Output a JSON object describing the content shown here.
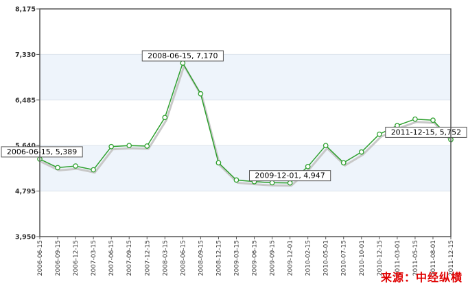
{
  "source_label": "来源：中经纵横",
  "colors": {
    "line": "#2ea02e",
    "shadow": "#c8c8c8",
    "band": "#eef4fb",
    "frame": "#555555",
    "source": "#e00000"
  },
  "chart_data": {
    "type": "line",
    "title": "",
    "xlabel": "",
    "ylabel": "",
    "ylim": [
      3950,
      8175
    ],
    "yticks": [
      "8,175",
      "7,330",
      "6,485",
      "5,640",
      "4,795",
      "3,950"
    ],
    "ytick_values": [
      8175,
      7330,
      6485,
      5640,
      4795,
      3950
    ],
    "categories": [
      "2006-06-15",
      "2006-09-15",
      "2006-12-15",
      "2007-03-15",
      "2007-06-15",
      "2007-09-15",
      "2007-12-15",
      "2008-03-15",
      "2008-06-15",
      "2008-09-15",
      "2008-12-15",
      "2009-03-15",
      "2009-06-15",
      "2009-09-15",
      "2009-12-01",
      "2010-02-15",
      "2010-05-01",
      "2010-07-15",
      "2010-10-01",
      "2010-12-15",
      "2011-03-01",
      "2011-05-15",
      "2011-08-01",
      "2011-12-15"
    ],
    "series": [
      {
        "values": [
          5389,
          5230,
          5260,
          5190,
          5620,
          5640,
          5630,
          6160,
          7170,
          6600,
          5320,
          5000,
          4970,
          4950,
          4947,
          5250,
          5640,
          5320,
          5520,
          5850,
          6010,
          6130,
          6110,
          5752
        ]
      }
    ],
    "annotations": [
      {
        "index": 0,
        "text": "2006-06-15, 5,389"
      },
      {
        "index": 8,
        "text": "2008-06-15, 7,170"
      },
      {
        "index": 14,
        "text": "2009-12-01, 4,947"
      },
      {
        "index": 23,
        "text": "2011-12-15, 5,752"
      }
    ],
    "grid": "alternating horizontal bands",
    "legend": "none"
  }
}
